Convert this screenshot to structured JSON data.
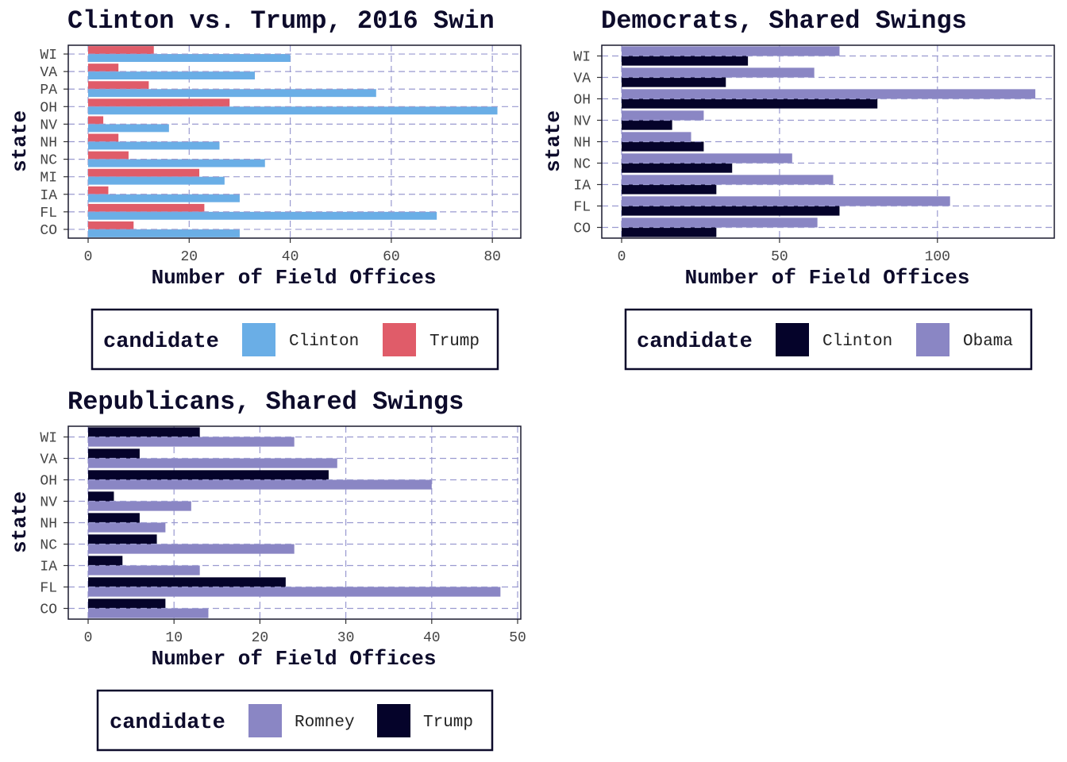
{
  "chart_data": [
    {
      "type": "bar",
      "orientation": "horizontal",
      "title": "Clinton vs. Trump, 2016 Swin",
      "xlabel": "Number of Field Offices",
      "ylabel": "state",
      "xlim": [
        0,
        85
      ],
      "xticks": [
        0,
        20,
        40,
        60,
        80
      ],
      "grid": true,
      "legend_placement": "bottom",
      "legend_title": "candidate",
      "categories": [
        "WI",
        "VA",
        "PA",
        "OH",
        "NV",
        "NH",
        "NC",
        "MI",
        "IA",
        "FL",
        "CO"
      ],
      "series": [
        {
          "name": "Clinton",
          "color": "#6aaee6",
          "values": [
            40,
            33,
            57,
            81,
            16,
            26,
            35,
            27,
            30,
            69,
            30
          ]
        },
        {
          "name": "Trump",
          "color": "#e05c69",
          "values": [
            13,
            6,
            12,
            28,
            3,
            6,
            8,
            22,
            4,
            23,
            9
          ]
        }
      ],
      "legend_order": [
        "Clinton",
        "Trump"
      ],
      "upper_series": "Trump"
    },
    {
      "type": "bar",
      "orientation": "horizontal",
      "title": "Democrats, Shared Swings",
      "xlabel": "Number of Field Offices",
      "ylabel": "state",
      "xlim": [
        0,
        136
      ],
      "xticks": [
        0,
        50,
        100
      ],
      "grid": true,
      "legend_placement": "bottom",
      "legend_title": "candidate",
      "categories": [
        "WI",
        "VA",
        "OH",
        "NV",
        "NH",
        "NC",
        "IA",
        "FL",
        "CO"
      ],
      "series": [
        {
          "name": "Clinton",
          "color": "#05032a",
          "values": [
            40,
            33,
            81,
            16,
            26,
            35,
            30,
            69,
            30
          ]
        },
        {
          "name": "Obama",
          "color": "#8a86c4",
          "values": [
            69,
            61,
            131,
            26,
            22,
            54,
            67,
            104,
            62
          ]
        }
      ],
      "legend_order": [
        "Clinton",
        "Obama"
      ],
      "upper_series": "Obama"
    },
    {
      "type": "bar",
      "orientation": "horizontal",
      "title": "Republicans, Shared Swings",
      "xlabel": "Number of Field Offices",
      "ylabel": "state",
      "xlim": [
        0,
        50
      ],
      "xticks": [
        0,
        10,
        20,
        30,
        40,
        50
      ],
      "grid": true,
      "legend_placement": "bottom",
      "legend_title": "candidate",
      "categories": [
        "WI",
        "VA",
        "OH",
        "NV",
        "NH",
        "NC",
        "IA",
        "FL",
        "CO"
      ],
      "series": [
        {
          "name": "Romney",
          "color": "#8a86c4",
          "values": [
            24,
            29,
            40,
            12,
            9,
            24,
            13,
            48,
            14
          ]
        },
        {
          "name": "Trump",
          "color": "#05032a",
          "values": [
            13,
            6,
            28,
            3,
            6,
            8,
            4,
            23,
            9
          ]
        }
      ],
      "legend_order": [
        "Romney",
        "Trump"
      ],
      "upper_series": "Trump"
    }
  ]
}
